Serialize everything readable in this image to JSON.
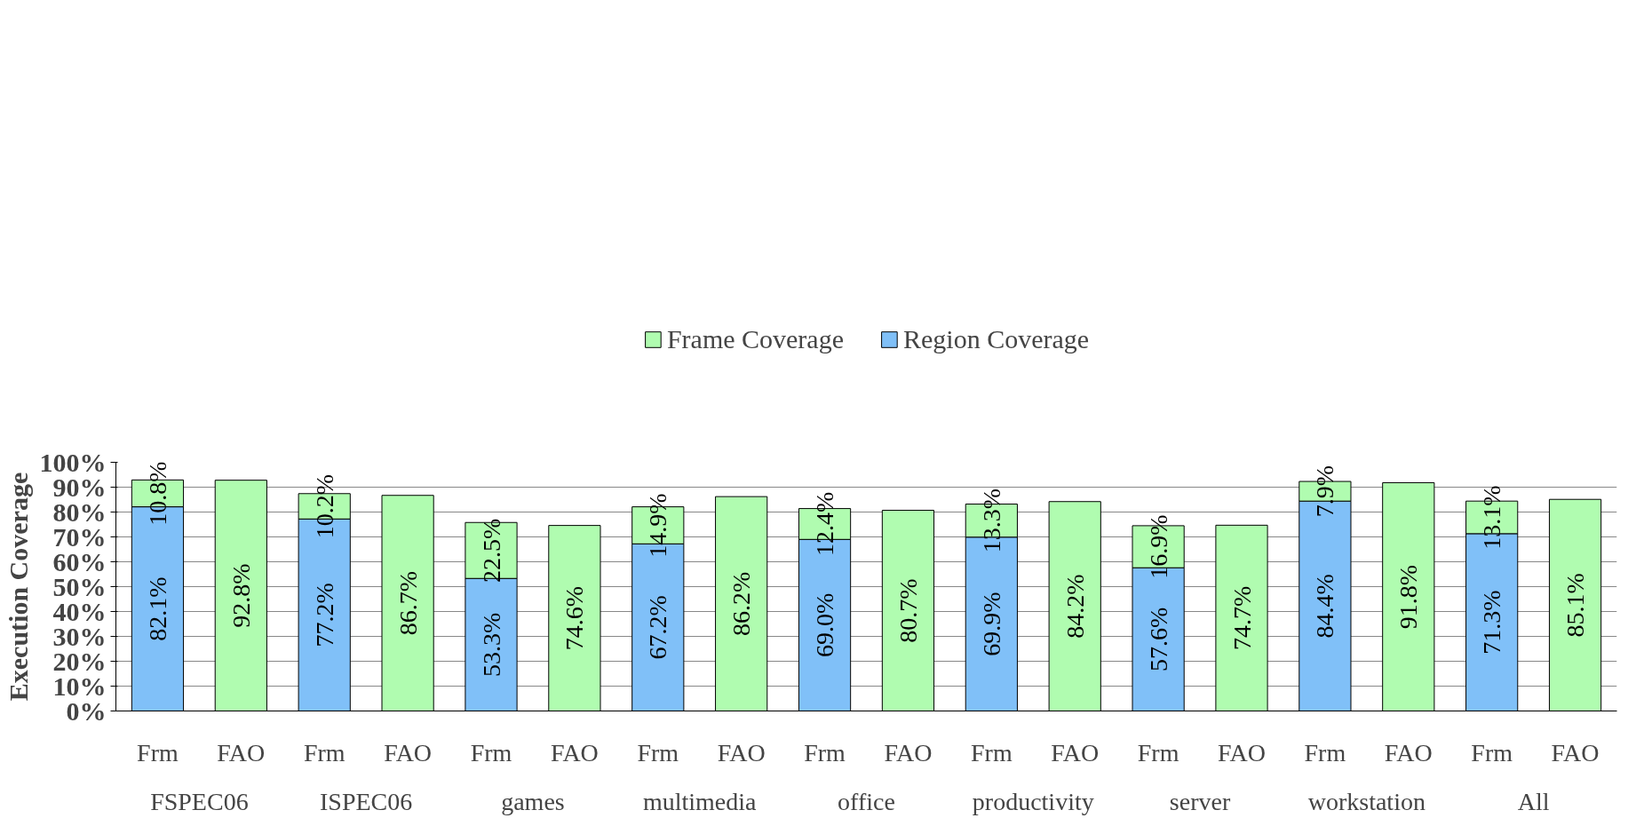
{
  "chart_data": {
    "type": "bar",
    "stacked": true,
    "ylabel": "Execution Coverage",
    "categories": [
      "Frm",
      "FAO",
      "Frm",
      "FAO",
      "Frm",
      "FAO",
      "Frm",
      "FAO",
      "Frm",
      "FAO",
      "Frm",
      "FAO",
      "Frm",
      "FAO",
      "Frm",
      "FAO",
      "Frm",
      "FAO"
    ],
    "annotations": [
      "FSPEC06",
      "ISPEC06",
      "games",
      "multimedia",
      "office",
      "productivity",
      "server",
      "workstation",
      "All"
    ],
    "series": [
      {
        "name": "Region Coverage",
        "color": "#80c0f8",
        "values": [
          82.1,
          null,
          77.2,
          null,
          53.3,
          null,
          67.2,
          null,
          69.0,
          null,
          69.9,
          null,
          57.6,
          null,
          84.4,
          null,
          71.3,
          null
        ],
        "value_labels": [
          "82.1%",
          null,
          "77.2%",
          null,
          "53.3%",
          null,
          "67.2%",
          null,
          "69.0%",
          null,
          "69.9%",
          null,
          "57.6%",
          null,
          "84.4%",
          null,
          "71.3%",
          null
        ]
      },
      {
        "name": "Frame Coverage",
        "color": "#b0fcb0",
        "values": [
          10.8,
          92.8,
          10.2,
          86.7,
          22.5,
          74.6,
          14.9,
          86.2,
          12.4,
          80.7,
          13.3,
          84.2,
          16.9,
          74.7,
          7.9,
          91.8,
          13.1,
          85.1
        ],
        "value_labels": [
          "10.8%",
          "92.8%",
          "10.2%",
          "86.7%",
          "22.5%",
          "74.6%",
          "14.9%",
          "86.2%",
          "12.4%",
          "80.7%",
          "13.3%",
          "84.2%",
          "16.9%",
          "74.7%",
          "7.9%",
          "91.8%",
          "13.1%",
          "85.1%"
        ]
      }
    ],
    "ylim": [
      0,
      100
    ],
    "yticks": [
      {
        "value": 0,
        "label": "0%"
      },
      {
        "value": 10,
        "label": "10%"
      },
      {
        "value": 20,
        "label": "20%"
      },
      {
        "value": 30,
        "label": "30%"
      },
      {
        "value": 40,
        "label": "40%"
      },
      {
        "value": 50,
        "label": "50%"
      },
      {
        "value": 60,
        "label": "60%"
      },
      {
        "value": 70,
        "label": "70%"
      },
      {
        "value": 80,
        "label": "80%"
      },
      {
        "value": 90,
        "label": "90%"
      },
      {
        "value": 100,
        "label": "100%"
      }
    ],
    "grid": "y",
    "legend": "top"
  }
}
